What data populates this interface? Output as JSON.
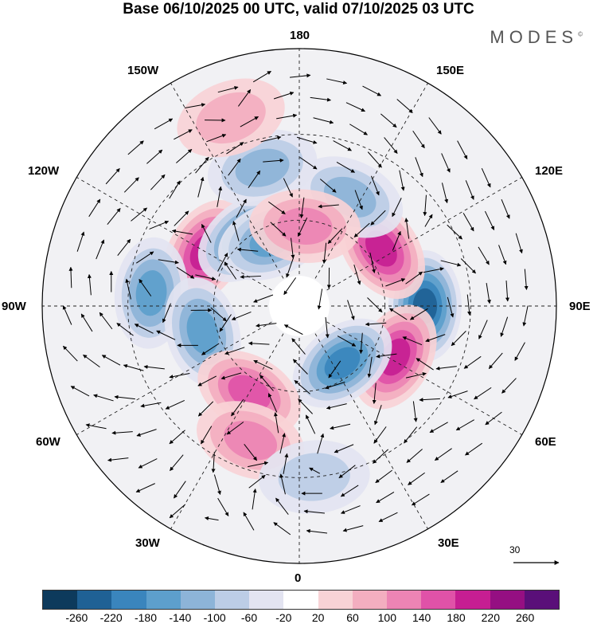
{
  "title": "Base 06/10/2025 00 UTC, valid 07/10/2025 03 UTC",
  "brand": "MODES",
  "brand_mark": "©",
  "longitude_labels": {
    "top": "180",
    "bottom": "0",
    "left": "90W",
    "right": "90E",
    "upper_left": "150W",
    "upper_right": "150E",
    "mid_upper_left": "120W",
    "mid_upper_right": "120E",
    "mid_lower_left": "60W",
    "mid_lower_right": "60E",
    "lower_left": "30W",
    "lower_right": "30E"
  },
  "reference_vector": {
    "label": "30"
  },
  "colorbar": {
    "colors": [
      "#0d3a5c",
      "#1f6195",
      "#3a85bd",
      "#5d9fcc",
      "#8db4d8",
      "#bccde6",
      "#e3e4f1",
      "#ffffff",
      "#f8d3d6",
      "#f3aec0",
      "#ec84b4",
      "#e052a8",
      "#c61e92",
      "#950f82",
      "#5a0f79"
    ],
    "tick_labels": [
      "-260",
      "-220",
      "-180",
      "-140",
      "-100",
      "-60",
      "-20",
      "20",
      "60",
      "100",
      "140",
      "180",
      "220",
      "260"
    ]
  },
  "anomaly_centers": [
    {
      "lon": -120,
      "lat": 52,
      "value": 210
    },
    {
      "lon": -143,
      "lat": 60,
      "value": -200
    },
    {
      "lon": -157,
      "lat": 65,
      "value": -150
    },
    {
      "lon": -165,
      "lat": 40,
      "value": -120
    },
    {
      "lon": -95,
      "lat": 38,
      "value": -170
    },
    {
      "lon": -75,
      "lat": 55,
      "value": -160
    },
    {
      "lon": 90,
      "lat": 46,
      "value": -220
    },
    {
      "lon": 62,
      "lat": 52,
      "value": 200
    },
    {
      "lon": 125,
      "lat": 55,
      "value": 180
    },
    {
      "lon": 155,
      "lat": 48,
      "value": -120
    },
    {
      "lon": 37,
      "lat": 65,
      "value": -200
    },
    {
      "lon": -30,
      "lat": 55,
      "value": 170
    },
    {
      "lon": -20,
      "lat": 40,
      "value": 120
    },
    {
      "lon": 176,
      "lat": 62,
      "value": 100
    },
    {
      "lon": 5,
      "lat": 30,
      "value": -70
    },
    {
      "lon": -160,
      "lat": 20,
      "value": 70
    }
  ]
}
